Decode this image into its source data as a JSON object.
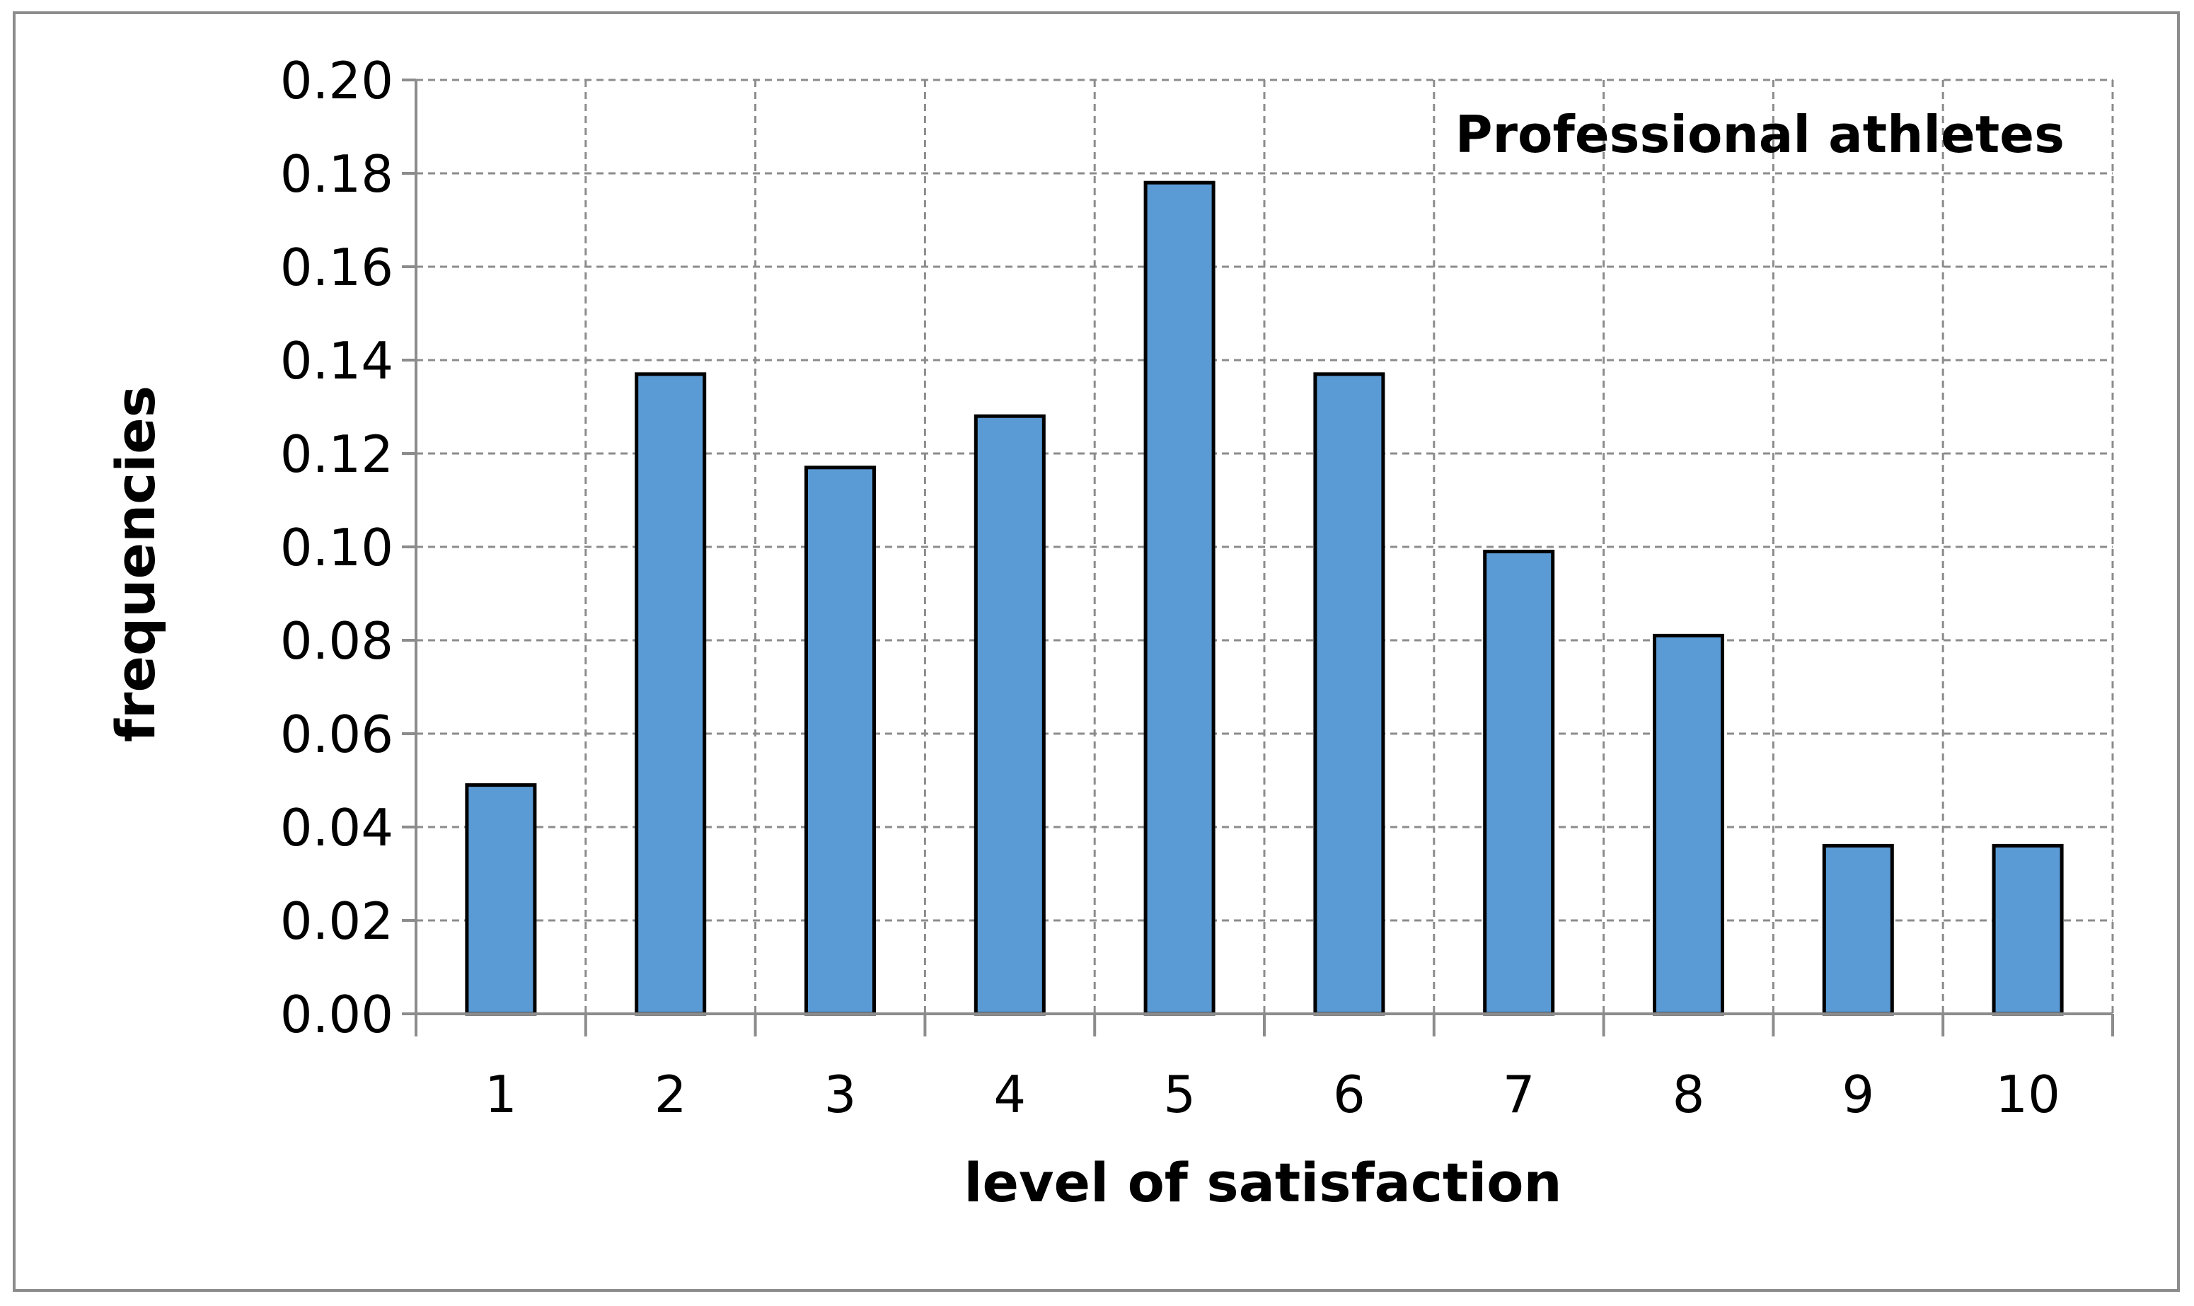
{
  "chart_data": {
    "type": "bar",
    "title": "Professional athletes",
    "xlabel": "level of satisfaction",
    "ylabel": "frequencies",
    "categories": [
      "1",
      "2",
      "3",
      "4",
      "5",
      "6",
      "7",
      "8",
      "9",
      "10"
    ],
    "values": [
      0.049,
      0.137,
      0.117,
      0.128,
      0.178,
      0.137,
      0.099,
      0.081,
      0.036,
      0.036
    ],
    "ylim": [
      0,
      0.2
    ],
    "yticks": [
      "0.00",
      "0.02",
      "0.04",
      "0.06",
      "0.08",
      "0.10",
      "0.12",
      "0.14",
      "0.16",
      "0.18",
      "0.20"
    ],
    "grid": true,
    "legend": "none",
    "colors": {
      "bar_fill": "#5b9bd5",
      "bar_stroke": "#000000",
      "grid": "#8c8c8c",
      "axis": "#8c8c8c",
      "frame": "#8c8c8c"
    }
  }
}
